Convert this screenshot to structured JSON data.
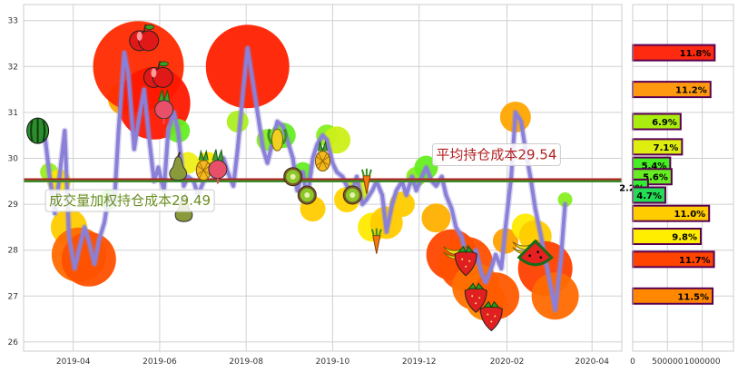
{
  "chart_data": [
    {
      "type": "line",
      "x_ticks": [
        "2019-04",
        "2019-06",
        "2019-08",
        "2019-10",
        "2019-12",
        "2020-02",
        "2020-04"
      ],
      "y_ticks": [
        "26",
        "27",
        "28",
        "29",
        "30",
        "31",
        "32",
        "33"
      ],
      "ylim": [
        25.8,
        33.35
      ],
      "grid": true,
      "background": "#ffffff",
      "grid_color": "#d0d0d0",
      "line_color": "#8a80d8",
      "series": [
        {
          "x": [
            "2019-03-07",
            "2019-03-12",
            "2019-03-15",
            "2019-03-19",
            "2019-03-22",
            "2019-03-26",
            "2019-03-29",
            "2019-04-02",
            "2019-04-05",
            "2019-04-09",
            "2019-04-12",
            "2019-04-16",
            "2019-04-19",
            "2019-04-23",
            "2019-04-26",
            "2019-04-30",
            "2019-05-03",
            "2019-05-07",
            "2019-05-10",
            "2019-05-14",
            "2019-05-17",
            "2019-05-21",
            "2019-05-24",
            "2019-05-28",
            "2019-05-31",
            "2019-06-04",
            "2019-06-07",
            "2019-06-11",
            "2019-06-14",
            "2019-06-18",
            "2019-06-21",
            "2019-06-25",
            "2019-06-28",
            "2019-07-02",
            "2019-07-05",
            "2019-07-09",
            "2019-07-12",
            "2019-07-16",
            "2019-07-19",
            "2019-07-23",
            "2019-07-26",
            "2019-07-30",
            "2019-08-02",
            "2019-08-06",
            "2019-08-09",
            "2019-08-13",
            "2019-08-16",
            "2019-08-20",
            "2019-08-23",
            "2019-08-27",
            "2019-08-30",
            "2019-09-03",
            "2019-09-06",
            "2019-09-10",
            "2019-09-13",
            "2019-09-17",
            "2019-09-20",
            "2019-09-24",
            "2019-09-27",
            "2019-10-01",
            "2019-10-04",
            "2019-10-08",
            "2019-10-11",
            "2019-10-15",
            "2019-10-18",
            "2019-10-22",
            "2019-10-25",
            "2019-10-29",
            "2019-11-01",
            "2019-11-05",
            "2019-11-08",
            "2019-11-12",
            "2019-11-15",
            "2019-11-19",
            "2019-11-22",
            "2019-11-26",
            "2019-11-29",
            "2019-12-03",
            "2019-12-06",
            "2019-12-10",
            "2019-12-13",
            "2019-12-17",
            "2019-12-20",
            "2019-12-24",
            "2019-12-27",
            "2019-12-31",
            "2020-01-03",
            "2020-01-07",
            "2020-01-10",
            "2020-01-14",
            "2020-01-17",
            "2020-01-21",
            "2020-01-24",
            "2020-01-28",
            "2020-01-31",
            "2020-02-04",
            "2020-02-07",
            "2020-02-11",
            "2020-02-14",
            "2020-02-18",
            "2020-02-21",
            "2020-02-25",
            "2020-02-28",
            "2020-03-03",
            "2020-03-06",
            "2020-03-10",
            "2020-03-13"
          ],
          "y": [
            30.6,
            30.5,
            29.7,
            28.8,
            29.5,
            30.6,
            28.3,
            27.6,
            28.0,
            28.5,
            28.2,
            27.7,
            28.2,
            28.6,
            29.2,
            29.0,
            30.6,
            32.3,
            31.8,
            30.2,
            30.8,
            31.5,
            30.6,
            29.5,
            29.8,
            29.3,
            30.6,
            31.0,
            30.6,
            29.4,
            29.6,
            29.5,
            29.2,
            29.5,
            29.8,
            29.6,
            29.6,
            30.0,
            29.7,
            29.4,
            30.2,
            31.5,
            32.4,
            31.6,
            31.0,
            30.2,
            29.9,
            30.4,
            30.8,
            30.7,
            30.4,
            30.0,
            29.3,
            29.7,
            29.1,
            30.0,
            30.3,
            30.5,
            30.4,
            29.9,
            29.7,
            29.6,
            29.4,
            29.3,
            29.6,
            29.0,
            29.1,
            29.3,
            29.5,
            29.2,
            28.4,
            29.0,
            29.3,
            29.5,
            29.2,
            29.6,
            29.3,
            29.6,
            29.8,
            29.5,
            29.4,
            29.6,
            29.2,
            28.9,
            28.5,
            28.3,
            27.9,
            27.8,
            28.0,
            27.5,
            27.3,
            27.6,
            27.9,
            27.6,
            28.5,
            29.6,
            31.0,
            30.8,
            30.2,
            29.5,
            28.9,
            28.3,
            27.8,
            27.2,
            26.7,
            27.8,
            29.0
          ]
        }
      ],
      "bubbles": [
        {
          "x": "2019-03-15",
          "y": 29.7,
          "r": 10,
          "color": "#9aee22"
        },
        {
          "x": "2019-03-22",
          "y": 29.5,
          "r": 13,
          "color": "#ffe800"
        },
        {
          "x": "2019-03-29",
          "y": 28.5,
          "r": 20,
          "color": "#ffcc00"
        },
        {
          "x": "2019-04-05",
          "y": 27.9,
          "r": 30,
          "color": "#ff6a00"
        },
        {
          "x": "2019-04-12",
          "y": 27.8,
          "r": 30,
          "color": "#ff5000"
        },
        {
          "x": "2019-04-26",
          "y": 29.1,
          "r": 11,
          "color": "#66ee22"
        },
        {
          "x": "2019-05-07",
          "y": 31.3,
          "r": 18,
          "color": "#ffa500"
        },
        {
          "x": "2019-05-17",
          "y": 32.0,
          "r": 50,
          "color": "#ff2a00"
        },
        {
          "x": "2019-05-28",
          "y": 31.2,
          "r": 40,
          "color": "#ff1800"
        },
        {
          "x": "2019-06-14",
          "y": 30.6,
          "r": 13,
          "color": "#66ee22"
        },
        {
          "x": "2019-06-21",
          "y": 29.9,
          "r": 12,
          "color": "#eef018"
        },
        {
          "x": "2019-07-05",
          "y": 29.9,
          "r": 12,
          "color": "#ffe800"
        },
        {
          "x": "2019-07-26",
          "y": 30.8,
          "r": 12,
          "color": "#aaf020"
        },
        {
          "x": "2019-08-02",
          "y": 32.0,
          "r": 46,
          "color": "#ff2000"
        },
        {
          "x": "2019-08-16",
          "y": 30.4,
          "r": 12,
          "color": "#88ee22"
        },
        {
          "x": "2019-08-27",
          "y": 30.5,
          "r": 14,
          "color": "#66ee22"
        },
        {
          "x": "2019-09-10",
          "y": 29.7,
          "r": 11,
          "color": "#66ee22"
        },
        {
          "x": "2019-09-17",
          "y": 28.9,
          "r": 14,
          "color": "#ffcc00"
        },
        {
          "x": "2019-09-27",
          "y": 30.5,
          "r": 12,
          "color": "#88ee22"
        },
        {
          "x": "2019-10-04",
          "y": 30.4,
          "r": 15,
          "color": "#ccf018"
        },
        {
          "x": "2019-10-11",
          "y": 29.1,
          "r": 14,
          "color": "#ffd400"
        },
        {
          "x": "2019-10-18",
          "y": 29.3,
          "r": 13,
          "color": "#ccee18"
        },
        {
          "x": "2019-10-29",
          "y": 28.5,
          "r": 16,
          "color": "#ffea00"
        },
        {
          "x": "2019-11-08",
          "y": 28.6,
          "r": 18,
          "color": "#ffcc00"
        },
        {
          "x": "2019-11-19",
          "y": 29.0,
          "r": 14,
          "color": "#ffcc00"
        },
        {
          "x": "2019-11-29",
          "y": 29.6,
          "r": 11,
          "color": "#88ee22"
        },
        {
          "x": "2019-12-06",
          "y": 29.8,
          "r": 13,
          "color": "#66ee22"
        },
        {
          "x": "2019-12-13",
          "y": 28.7,
          "r": 16,
          "color": "#ffb000"
        },
        {
          "x": "2019-12-24",
          "y": 27.9,
          "r": 28,
          "color": "#ff4800"
        },
        {
          "x": "2020-01-03",
          "y": 27.7,
          "r": 30,
          "color": "#ff5000"
        },
        {
          "x": "2020-01-10",
          "y": 27.2,
          "r": 26,
          "color": "#ff7000"
        },
        {
          "x": "2020-01-17",
          "y": 26.9,
          "r": 22,
          "color": "#ff8800"
        },
        {
          "x": "2020-01-24",
          "y": 27.0,
          "r": 26,
          "color": "#ff5a00"
        },
        {
          "x": "2020-01-31",
          "y": 28.2,
          "r": 14,
          "color": "#ffa000"
        },
        {
          "x": "2020-02-07",
          "y": 30.9,
          "r": 17,
          "color": "#ffa500"
        },
        {
          "x": "2020-02-14",
          "y": 28.5,
          "r": 15,
          "color": "#ffea00"
        },
        {
          "x": "2020-02-21",
          "y": 28.3,
          "r": 18,
          "color": "#ffcc00"
        },
        {
          "x": "2020-02-28",
          "y": 27.6,
          "r": 30,
          "color": "#ff4000"
        },
        {
          "x": "2020-03-06",
          "y": 27.0,
          "r": 26,
          "color": "#ff6a00"
        },
        {
          "x": "2020-03-13",
          "y": 29.1,
          "r": 8,
          "color": "#88ee22"
        }
      ],
      "fruit_markers": [
        {
          "x": "2019-03-07",
          "y": 30.6,
          "icon": "watermelon-icon"
        },
        {
          "x": "2019-05-21",
          "y": 32.6,
          "icon": "apple-icon"
        },
        {
          "x": "2019-05-31",
          "y": 31.8,
          "icon": "apple-icon"
        },
        {
          "x": "2019-06-04",
          "y": 31.1,
          "icon": "radish-icon"
        },
        {
          "x": "2019-06-14",
          "y": 29.8,
          "icon": "pear-icon"
        },
        {
          "x": "2019-06-18",
          "y": 28.9,
          "icon": "pear-icon"
        },
        {
          "x": "2019-07-02",
          "y": 29.8,
          "icon": "pineapple-icon"
        },
        {
          "x": "2019-07-12",
          "y": 29.8,
          "icon": "radish-icon"
        },
        {
          "x": "2019-08-23",
          "y": 30.4,
          "icon": "corn-icon"
        },
        {
          "x": "2019-09-03",
          "y": 29.6,
          "icon": "kiwi-icon"
        },
        {
          "x": "2019-09-13",
          "y": 29.2,
          "icon": "kiwi-icon"
        },
        {
          "x": "2019-09-24",
          "y": 30.0,
          "icon": "pineapple-icon"
        },
        {
          "x": "2019-10-15",
          "y": 29.2,
          "icon": "kiwi-icon"
        },
        {
          "x": "2019-10-25",
          "y": 29.5,
          "icon": "carrot-icon"
        },
        {
          "x": "2019-11-01",
          "y": 28.2,
          "icon": "carrot-icon"
        },
        {
          "x": "2019-12-27",
          "y": 28.0,
          "icon": "banana-icon"
        },
        {
          "x": "2020-01-03",
          "y": 27.8,
          "icon": "strawberry-icon"
        },
        {
          "x": "2020-01-10",
          "y": 27.0,
          "icon": "strawberry-icon"
        },
        {
          "x": "2020-01-21",
          "y": 26.6,
          "icon": "strawberry-icon"
        },
        {
          "x": "2020-02-14",
          "y": 28.1,
          "icon": "banana-icon"
        },
        {
          "x": "2020-02-21",
          "y": 27.8,
          "icon": "watermelon-slice-icon"
        }
      ],
      "reference_lines": [
        {
          "value": 29.54,
          "color": "#b22222",
          "label": "平均持仓成本29.54",
          "label_color": "#b22222",
          "label_x": "2019-12-13",
          "label_y": 30.0
        },
        {
          "value": 29.5,
          "color": "#3a8c2a",
          "label": "成交量加权持仓成本29.49",
          "label_color": "#6b8e23",
          "label_x": "2019-03-15",
          "label_y": 29.0
        }
      ]
    },
    {
      "type": "bar",
      "orientation": "horizontal",
      "x_ticks": [
        "0",
        "500000",
        "1000000"
      ],
      "xlim": [
        0,
        1450000
      ],
      "ylim": [
        25.8,
        33.35
      ],
      "bars": [
        {
          "price": 32.3,
          "volume": 1180000,
          "label": "11.8%",
          "color": "#ff2a10"
        },
        {
          "price": 31.5,
          "volume": 1120000,
          "label": "11.2%",
          "color": "#ff9a10"
        },
        {
          "price": 30.8,
          "volume": 690000,
          "label": "6.9%",
          "color": "#aaee10"
        },
        {
          "price": 30.25,
          "volume": 710000,
          "label": "7.1%",
          "color": "#ddee10"
        },
        {
          "price": 29.85,
          "volume": 540000,
          "label": "5.4%",
          "color": "#44ee22"
        },
        {
          "price": 29.6,
          "volume": 560000,
          "label": "5.6%",
          "color": "#66ee22"
        },
        {
          "price": 29.37,
          "volume": 220000,
          "label": "2.2%",
          "color": "#33ee33"
        },
        {
          "price": 29.2,
          "volume": 470000,
          "label": "4.7%",
          "color": "#22dd55"
        },
        {
          "price": 28.8,
          "volume": 1100000,
          "label": "11.0%",
          "color": "#ffcc00"
        },
        {
          "price": 28.3,
          "volume": 980000,
          "label": "9.8%",
          "color": "#ffee00"
        },
        {
          "price": 27.8,
          "volume": 1170000,
          "label": "11.7%",
          "color": "#ff4400"
        },
        {
          "price": 27.0,
          "volume": 1150000,
          "label": "11.5%",
          "color": "#ff8800"
        }
      ],
      "bar_edge_color": "#5a0050"
    }
  ]
}
